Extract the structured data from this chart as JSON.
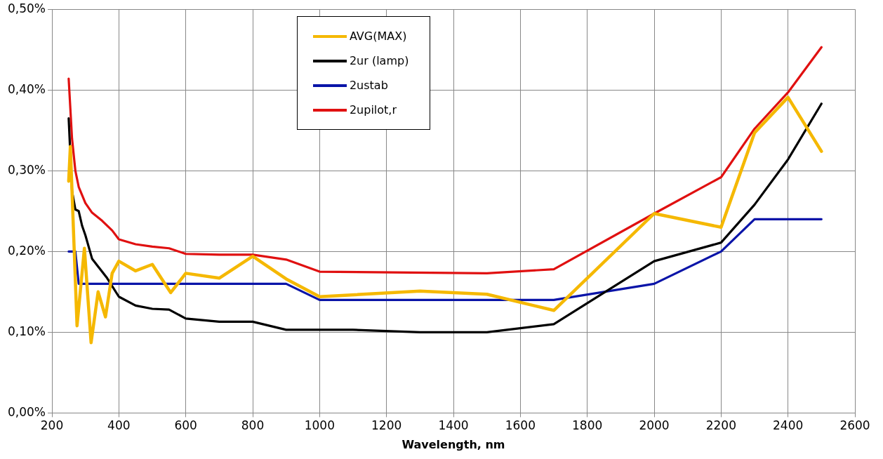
{
  "chart_data": {
    "type": "line",
    "xlabel": "Wavelength, nm",
    "legend": "top",
    "grid": true,
    "marker": "none",
    "line_style": "solid",
    "xlim": [
      200,
      2600
    ],
    "xticks": [
      200,
      400,
      600,
      800,
      1000,
      1200,
      1400,
      1600,
      1800,
      2000,
      2200,
      2400,
      2600
    ],
    "ylim": [
      0,
      0.5
    ],
    "yticks": [
      {
        "value": 0,
        "label": "0,00%"
      },
      {
        "value": 0.1,
        "label": "0,10%"
      },
      {
        "value": 0.2,
        "label": "0,20%"
      },
      {
        "value": 0.3,
        "label": "0,30%"
      },
      {
        "value": 0.4,
        "label": "0,40%"
      },
      {
        "value": 0.5,
        "label": "0,50%"
      }
    ],
    "series": [
      {
        "name": "AVG(MAX)",
        "color": "#f5b800",
        "x": [
          250,
          255,
          275,
          297,
          317,
          338,
          360,
          380,
          400,
          450,
          500,
          555,
          600,
          700,
          800,
          900,
          1000,
          1300,
          1500,
          1700,
          2000,
          2200,
          2300,
          2400,
          2500
        ],
        "values": [
          0.287,
          0.33,
          0.108,
          0.204,
          0.087,
          0.15,
          0.119,
          0.173,
          0.188,
          0.176,
          0.184,
          0.149,
          0.173,
          0.167,
          0.194,
          0.166,
          0.144,
          0.151,
          0.147,
          0.127,
          0.247,
          0.23,
          0.347,
          0.391,
          0.324
        ]
      },
      {
        "name": "2ur (lamp)",
        "color": "#000000",
        "x": [
          250,
          260,
          270,
          280,
          290,
          300,
          320,
          365,
          400,
          450,
          500,
          550,
          600,
          700,
          800,
          900,
          1000,
          1100,
          1300,
          1500,
          1700,
          2000,
          2200,
          2300,
          2400,
          2500
        ],
        "values": [
          0.365,
          0.275,
          0.252,
          0.25,
          0.232,
          0.22,
          0.191,
          0.167,
          0.144,
          0.133,
          0.129,
          0.128,
          0.117,
          0.113,
          0.113,
          0.103,
          0.103,
          0.103,
          0.1,
          0.1,
          0.11,
          0.188,
          0.211,
          0.258,
          0.314,
          0.383
        ]
      },
      {
        "name": "2ustab",
        "color": "#0a14a8",
        "x": [
          250,
          270,
          280,
          900,
          1000,
          1700,
          2000,
          2200,
          2300,
          2500
        ],
        "values": [
          0.2,
          0.2,
          0.16,
          0.16,
          0.14,
          0.14,
          0.16,
          0.2,
          0.24,
          0.24
        ]
      },
      {
        "name": "2upilot,r",
        "color": "#e01010",
        "x": [
          250,
          260,
          270,
          280,
          300,
          320,
          350,
          380,
          400,
          450,
          500,
          550,
          600,
          700,
          800,
          900,
          1000,
          1500,
          1700,
          2000,
          2200,
          2300,
          2400,
          2500
        ],
        "values": [
          0.414,
          0.34,
          0.3,
          0.28,
          0.26,
          0.248,
          0.238,
          0.226,
          0.215,
          0.209,
          0.206,
          0.204,
          0.197,
          0.196,
          0.196,
          0.19,
          0.175,
          0.173,
          0.178,
          0.247,
          0.292,
          0.352,
          0.397,
          0.453
        ]
      }
    ]
  }
}
